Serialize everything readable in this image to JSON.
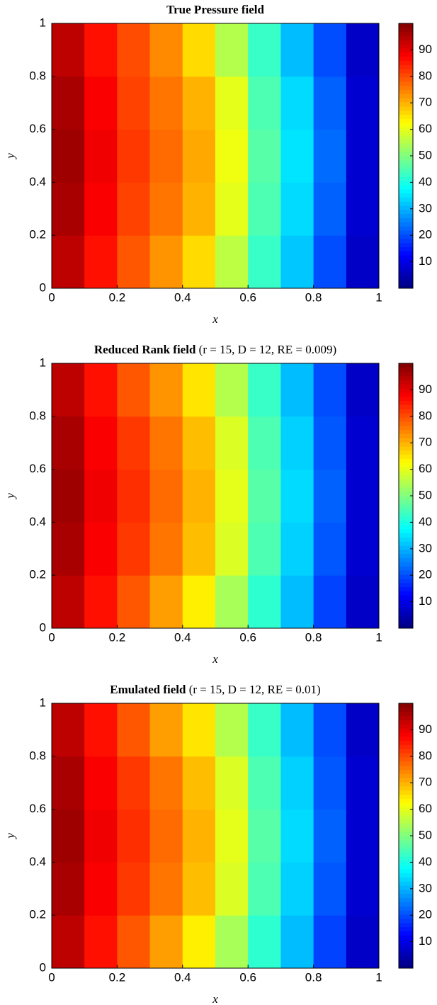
{
  "chart_data": [
    {
      "type": "heatmap",
      "title": "True Pressure field",
      "xlabel": "x",
      "ylabel": "y",
      "xlim": [
        0,
        1
      ],
      "ylim": [
        0,
        1
      ],
      "xticks": [
        0,
        0.2,
        0.4,
        0.6,
        0.8,
        1
      ],
      "yticks": [
        0,
        0.2,
        0.4,
        0.6,
        0.8,
        1
      ],
      "x": [
        0.05,
        0.15,
        0.25,
        0.35,
        0.45,
        0.55,
        0.65,
        0.75,
        0.85,
        0.95
      ],
      "y": [
        0.1,
        0.3,
        0.5,
        0.7,
        0.9
      ],
      "z": [
        [
          94,
          86,
          79,
          73,
          66,
          56,
          43,
          32,
          20,
          7
        ],
        [
          96,
          88,
          81,
          76,
          70,
          60,
          45,
          34,
          22,
          8
        ],
        [
          97,
          89,
          82,
          77,
          71,
          61,
          46,
          35,
          23,
          8
        ],
        [
          96,
          88,
          81,
          76,
          70,
          60,
          45,
          34,
          22,
          8
        ],
        [
          94,
          86,
          80,
          74,
          66,
          55,
          43,
          31,
          20,
          7
        ]
      ],
      "colormap": "jet",
      "clim": [
        0,
        100
      ],
      "cticks": [
        10,
        20,
        30,
        40,
        50,
        60,
        70,
        80,
        90
      ]
    },
    {
      "type": "heatmap",
      "title": "Reduced Rank field",
      "subtitle": "(r = 15, D = 12, RE = 0.009)",
      "xlabel": "x",
      "ylabel": "y",
      "xlim": [
        0,
        1
      ],
      "ylim": [
        0,
        1
      ],
      "xticks": [
        0,
        0.2,
        0.4,
        0.6,
        0.8,
        1
      ],
      "yticks": [
        0,
        0.2,
        0.4,
        0.6,
        0.8,
        1
      ],
      "x": [
        0.05,
        0.15,
        0.25,
        0.35,
        0.45,
        0.55,
        0.65,
        0.75,
        0.85,
        0.95
      ],
      "y": [
        0.1,
        0.3,
        0.5,
        0.7,
        0.9
      ],
      "z": [
        [
          94,
          86,
          79,
          72,
          64,
          54,
          42,
          31,
          19,
          7
        ],
        [
          96,
          88,
          82,
          76,
          69,
          59,
          45,
          33,
          21,
          8
        ],
        [
          97,
          89,
          83,
          77,
          70,
          60,
          46,
          34,
          22,
          8
        ],
        [
          96,
          88,
          82,
          76,
          69,
          59,
          45,
          33,
          21,
          8
        ],
        [
          94,
          86,
          79,
          73,
          65,
          55,
          43,
          31,
          20,
          7
        ]
      ],
      "colormap": "jet",
      "clim": [
        0,
        100
      ],
      "cticks": [
        10,
        20,
        30,
        40,
        50,
        60,
        70,
        80,
        90
      ]
    },
    {
      "type": "heatmap",
      "title": "Emulated field",
      "subtitle": "(r = 15, D = 12, RE = 0.01)",
      "xlabel": "x",
      "ylabel": "y",
      "xlim": [
        0,
        1
      ],
      "ylim": [
        0,
        1
      ],
      "xticks": [
        0,
        0.2,
        0.4,
        0.6,
        0.8,
        1
      ],
      "yticks": [
        0,
        0.2,
        0.4,
        0.6,
        0.8,
        1
      ],
      "x": [
        0.05,
        0.15,
        0.25,
        0.35,
        0.45,
        0.55,
        0.65,
        0.75,
        0.85,
        0.95
      ],
      "y": [
        0.1,
        0.3,
        0.5,
        0.7,
        0.9
      ],
      "z": [
        [
          94,
          86,
          79,
          72,
          64,
          54,
          42,
          31,
          19,
          7
        ],
        [
          96,
          88,
          82,
          76,
          69,
          59,
          45,
          33,
          21,
          8
        ],
        [
          97,
          89,
          83,
          77,
          70,
          60,
          46,
          34,
          22,
          8
        ],
        [
          96,
          88,
          82,
          76,
          69,
          59,
          45,
          33,
          21,
          8
        ],
        [
          94,
          86,
          79,
          72,
          65,
          55,
          43,
          31,
          20,
          7
        ]
      ],
      "colormap": "jet",
      "clim": [
        0,
        100
      ],
      "cticks": [
        10,
        20,
        30,
        40,
        50,
        60,
        70,
        80,
        90
      ]
    }
  ]
}
